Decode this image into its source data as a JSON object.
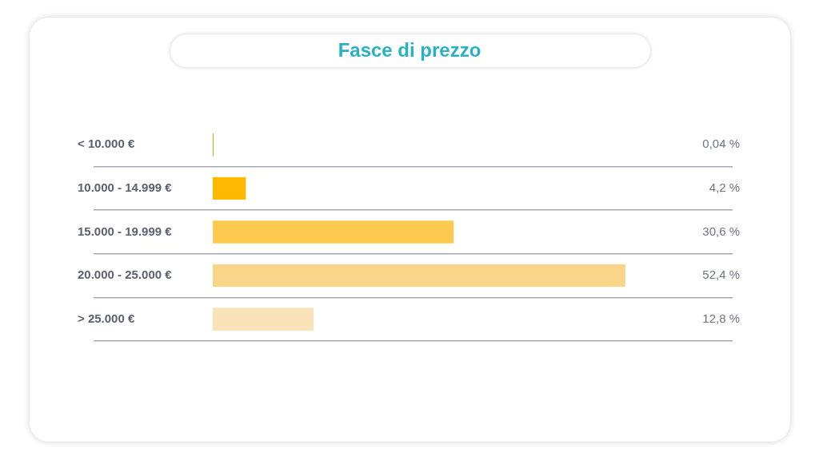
{
  "chart_data": {
    "type": "bar",
    "title": "Fasce di prezzo",
    "orientation": "horizontal",
    "categories": [
      "< 10.000 €",
      "10.000 - 14.999 €",
      "15.000 - 19.999 €",
      "20.000 - 25.000 €",
      "> 25.000 €"
    ],
    "values": [
      0.04,
      4.2,
      30.6,
      52.4,
      12.8
    ],
    "colors": [
      "#d69c12",
      "#ffb900",
      "#fdca4f",
      "#f8d589",
      "#f9e2b8"
    ],
    "value_labels": [
      "0,04 %",
      "4,2 %",
      "30,6 %",
      "52,4 %",
      "12,8 %"
    ],
    "grid": "y",
    "tick_labels": "y"
  }
}
